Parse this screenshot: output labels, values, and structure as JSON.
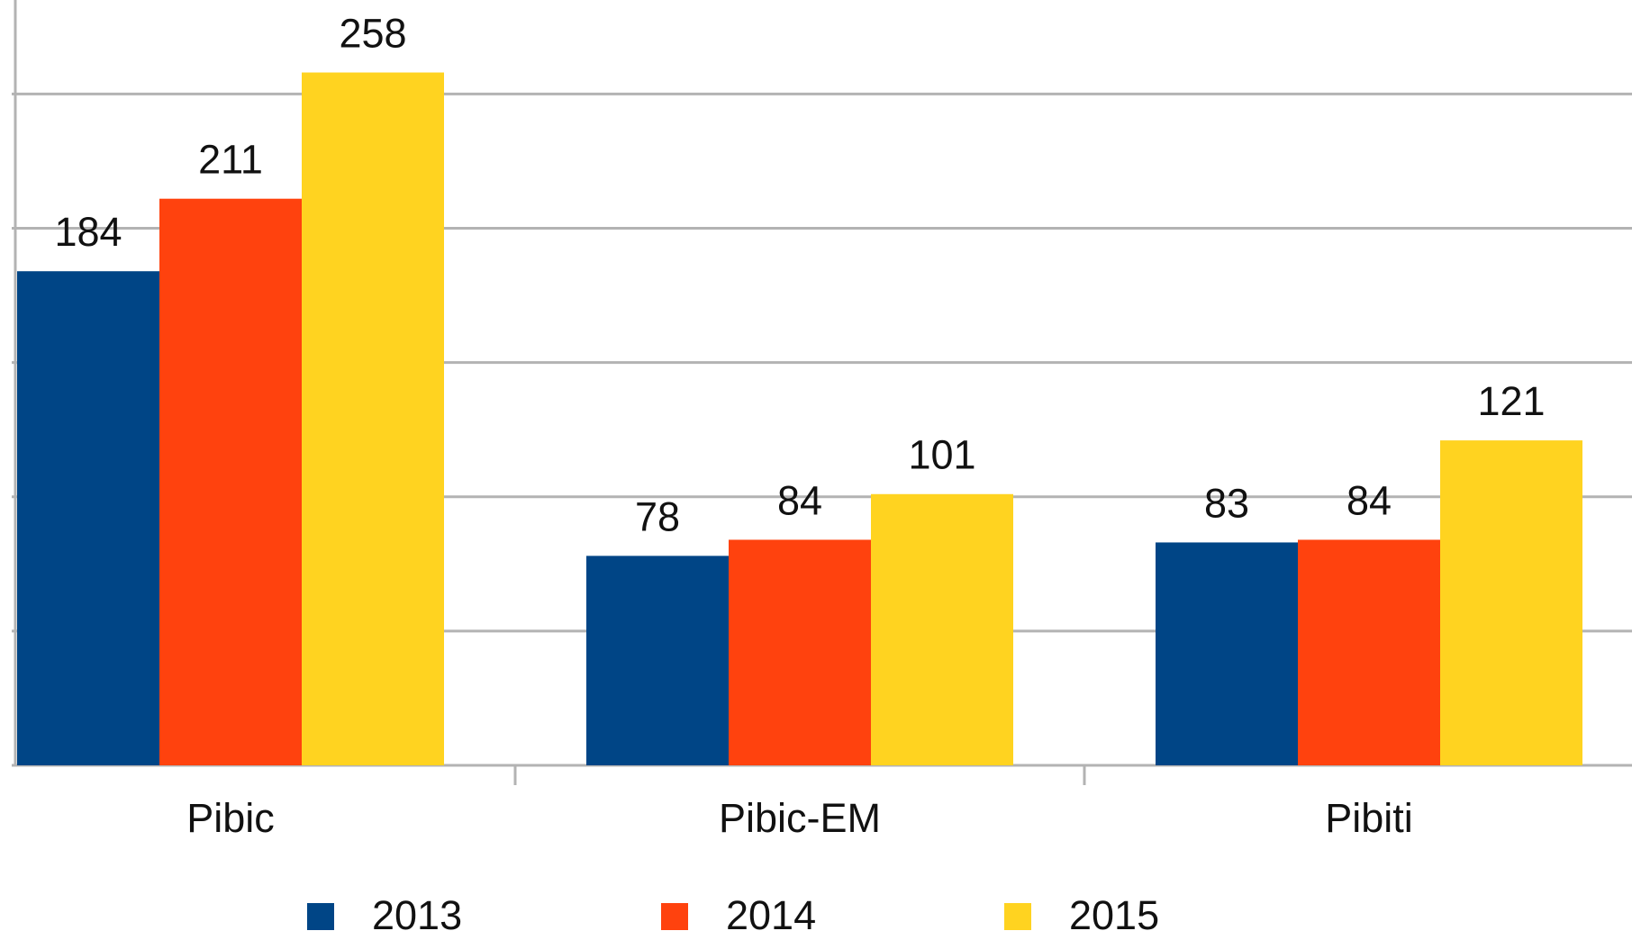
{
  "chart_data": {
    "type": "bar",
    "categories": [
      "Pibic",
      "Pibic-EM",
      "Pibiti"
    ],
    "series": [
      {
        "name": "2013",
        "color": "#004586",
        "values": [
          184,
          78,
          83
        ]
      },
      {
        "name": "2014",
        "color": "#ff420e",
        "values": [
          211,
          84,
          84
        ]
      },
      {
        "name": "2015",
        "color": "#ffd320",
        "values": [
          258,
          101,
          121
        ]
      }
    ],
    "ylim": [
      0,
      285
    ],
    "yticks": [
      0,
      50,
      100,
      150,
      200,
      250
    ],
    "grid": true,
    "legend": "bottom"
  }
}
